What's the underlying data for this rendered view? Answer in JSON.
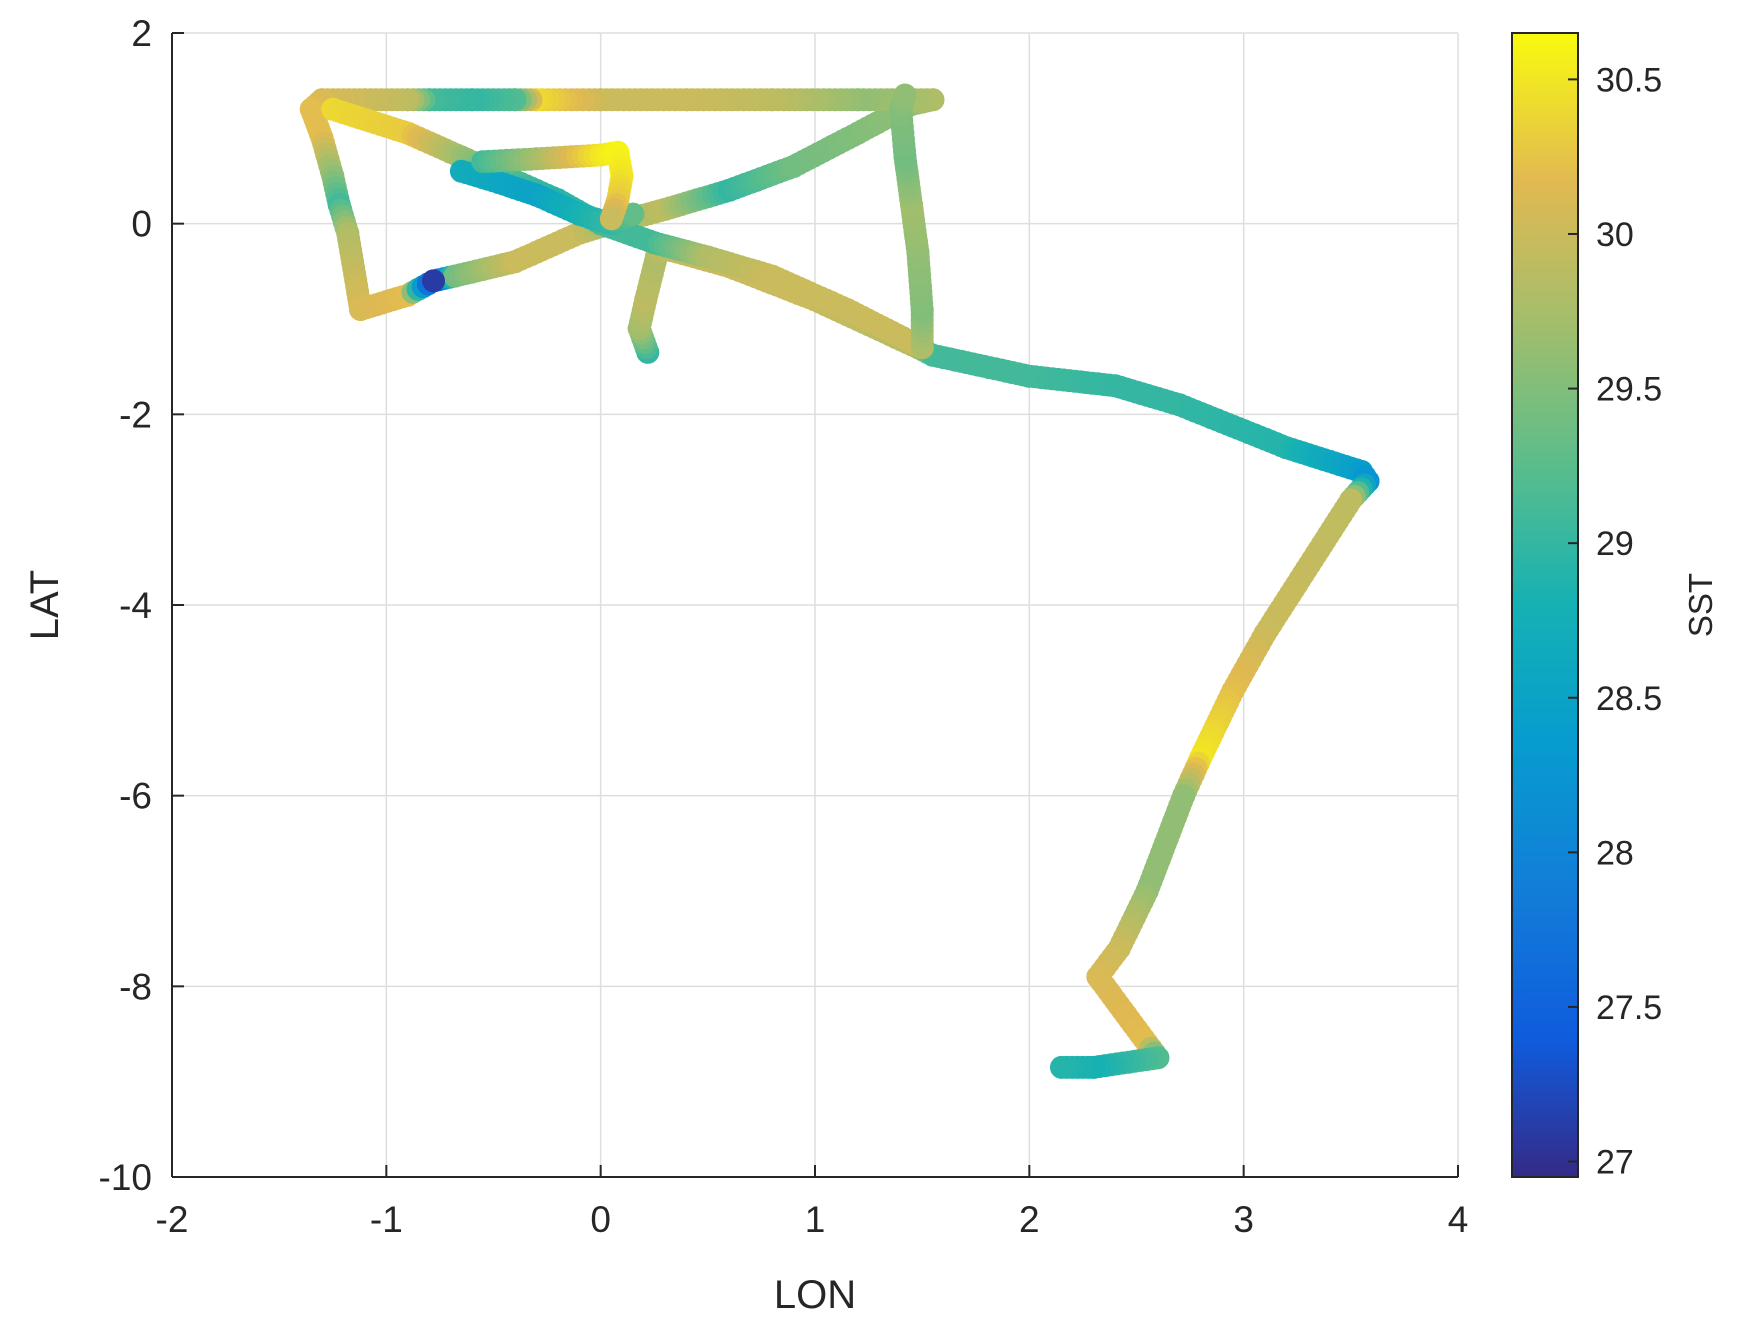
{
  "chart_data": {
    "type": "scatter",
    "xlabel": "LON",
    "ylabel": "LAT",
    "colorbar_label": "SST",
    "xlim": [
      -2,
      4
    ],
    "ylim": [
      -10,
      2
    ],
    "xticks": [
      "-2",
      "-1",
      "0",
      "1",
      "2",
      "3",
      "4"
    ],
    "yticks": [
      "2",
      "0",
      "-2",
      "-4",
      "-6",
      "-8",
      "-10"
    ],
    "clim": [
      26.95,
      30.65
    ],
    "colorbar_ticks": [
      "30.5",
      "30",
      "29.5",
      "29",
      "28.5",
      "28",
      "27.5",
      "27"
    ],
    "grid": true,
    "colormap": "parula",
    "series": [
      {
        "points": [
          [
            0.22,
            -1.35,
            29.0
          ],
          [
            0.18,
            -1.1,
            29.7
          ],
          [
            0.21,
            -0.8,
            29.9
          ],
          [
            0.26,
            -0.35,
            29.8
          ],
          [
            0.28,
            -0.25,
            29.9
          ],
          [
            0.6,
            -0.45,
            30.0
          ],
          [
            1.0,
            -0.8,
            30.0
          ],
          [
            1.48,
            -1.3,
            29.8
          ],
          [
            1.55,
            -1.38,
            29.1
          ],
          [
            2.0,
            -1.6,
            29.1
          ],
          [
            2.4,
            -1.7,
            29.0
          ],
          [
            2.7,
            -1.9,
            29.0
          ],
          [
            3.2,
            -2.35,
            28.9
          ],
          [
            3.55,
            -2.6,
            28.4
          ],
          [
            3.58,
            -2.7,
            28.2
          ],
          [
            3.5,
            -2.9,
            29.9
          ],
          [
            3.1,
            -4.3,
            30.0
          ],
          [
            2.95,
            -4.9,
            30.2
          ],
          [
            2.8,
            -5.6,
            30.5
          ],
          [
            2.72,
            -6.0,
            29.6
          ],
          [
            2.55,
            -7.0,
            29.6
          ],
          [
            2.42,
            -7.6,
            30.0
          ],
          [
            2.32,
            -7.9,
            30.1
          ],
          [
            2.55,
            -8.6,
            30.2
          ],
          [
            2.6,
            -8.75,
            29.2
          ],
          [
            2.3,
            -8.85,
            28.8
          ],
          [
            2.15,
            -8.85,
            28.9
          ]
        ]
      },
      {
        "points": [
          [
            -0.78,
            -0.6,
            27.1
          ],
          [
            -0.68,
            -0.55,
            29.4
          ],
          [
            -0.4,
            -0.4,
            30.0
          ],
          [
            -0.1,
            -0.1,
            30.0
          ],
          [
            0.05,
            0.0,
            29.7
          ],
          [
            0.3,
            0.15,
            29.9
          ],
          [
            0.6,
            0.35,
            29.0
          ],
          [
            0.9,
            0.6,
            29.4
          ],
          [
            1.2,
            0.95,
            29.5
          ],
          [
            1.45,
            1.25,
            29.6
          ],
          [
            1.55,
            1.3,
            29.8
          ]
        ]
      },
      {
        "points": [
          [
            1.55,
            1.3,
            29.8
          ],
          [
            1.2,
            1.3,
            29.6
          ],
          [
            0.8,
            1.3,
            29.9
          ],
          [
            0.4,
            1.3,
            30.0
          ],
          [
            0.0,
            1.3,
            30.0
          ],
          [
            -0.3,
            1.3,
            30.4
          ],
          [
            -0.4,
            1.3,
            29.2
          ],
          [
            -0.6,
            1.3,
            29.0
          ],
          [
            -0.8,
            1.3,
            29.1
          ],
          [
            -0.9,
            1.3,
            29.9
          ],
          [
            -1.1,
            1.3,
            30.0
          ],
          [
            -1.3,
            1.3,
            30.1
          ]
        ]
      },
      {
        "points": [
          [
            -1.3,
            1.3,
            30.1
          ],
          [
            -1.35,
            1.2,
            30.2
          ],
          [
            -1.3,
            0.9,
            30.2
          ],
          [
            -1.25,
            0.5,
            29.6
          ],
          [
            -1.22,
            0.2,
            29.1
          ],
          [
            -1.18,
            -0.1,
            29.8
          ],
          [
            -1.12,
            -0.9,
            30.1
          ],
          [
            -0.9,
            -0.75,
            30.2
          ],
          [
            -0.78,
            -0.6,
            27.1
          ]
        ]
      },
      {
        "points": [
          [
            -1.25,
            1.2,
            30.4
          ],
          [
            -0.9,
            0.95,
            30.3
          ],
          [
            -0.5,
            0.55,
            29.3
          ],
          [
            -0.2,
            0.25,
            28.9
          ],
          [
            0.0,
            0.0,
            29.1
          ],
          [
            0.25,
            -0.2,
            29.1
          ],
          [
            0.5,
            -0.35,
            29.8
          ],
          [
            0.8,
            -0.55,
            30.0
          ],
          [
            1.15,
            -0.9,
            30.0
          ],
          [
            1.5,
            -1.3,
            30.0
          ]
        ]
      },
      {
        "points": [
          [
            1.5,
            -1.3,
            29.8
          ],
          [
            1.5,
            -0.9,
            29.5
          ],
          [
            1.48,
            -0.3,
            29.6
          ],
          [
            1.45,
            0.2,
            29.7
          ],
          [
            1.42,
            0.7,
            29.4
          ],
          [
            1.4,
            1.2,
            29.5
          ],
          [
            1.42,
            1.35,
            29.6
          ]
        ]
      },
      {
        "points": [
          [
            -0.65,
            0.55,
            28.7
          ],
          [
            -0.5,
            0.45,
            28.6
          ],
          [
            -0.3,
            0.3,
            28.5
          ],
          [
            -0.1,
            0.1,
            28.8
          ],
          [
            0.05,
            0.0,
            29.0
          ],
          [
            0.15,
            0.1,
            29.3
          ]
        ]
      },
      {
        "points": [
          [
            -0.55,
            0.65,
            29.1
          ],
          [
            -0.3,
            0.68,
            29.7
          ],
          [
            0.0,
            0.72,
            30.5
          ],
          [
            0.08,
            0.75,
            30.6
          ],
          [
            0.1,
            0.5,
            30.5
          ],
          [
            0.08,
            0.25,
            30.3
          ],
          [
            0.05,
            0.05,
            30.0
          ]
        ]
      }
    ]
  }
}
